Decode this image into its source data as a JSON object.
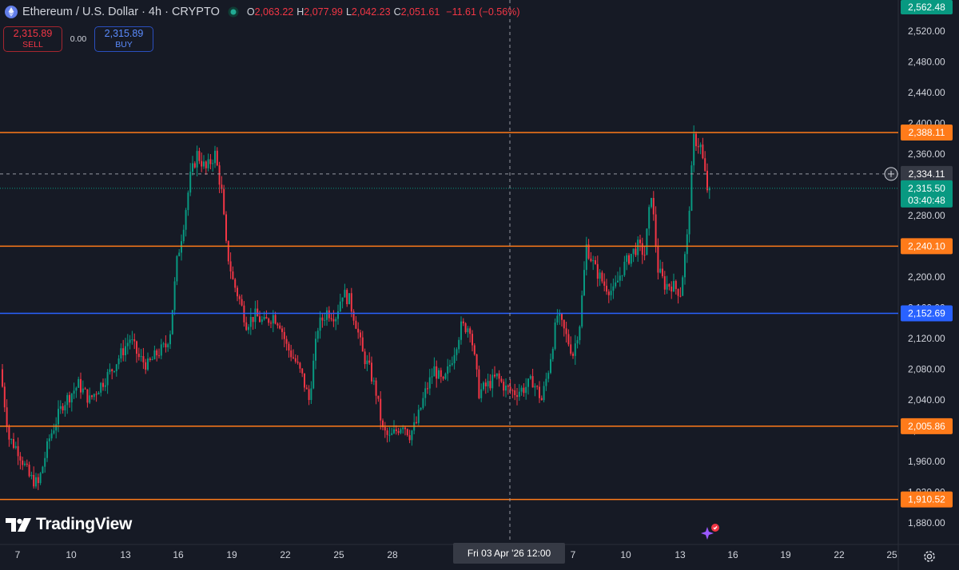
{
  "header": {
    "title": "Ethereum / U.S. Dollar · 4h · CRYPTO",
    "open_label": "O",
    "open": "2,063.22",
    "high_label": "H",
    "high": "2,077.99",
    "low_label": "L",
    "low": "2,042.23",
    "close_label": "C",
    "close": "2,051.61",
    "change": "−11.61 (−0.56%)"
  },
  "trade": {
    "sell_price": "2,315.89",
    "sell_label": "SELL",
    "spread": "0.00",
    "buy_price": "2,315.89",
    "buy_label": "BUY"
  },
  "brand": {
    "name": "TradingView"
  },
  "colors": {
    "background": "#161a25",
    "up": "#089981",
    "down": "#f23645",
    "level_line": "#ff7b1a",
    "blue_line": "#2962ff",
    "last_price": "#089981"
  },
  "chart_data": {
    "type": "candlestick",
    "ylim": [
      1860,
      2580
    ],
    "y_ticks": [
      "2,520.00",
      "2,480.00",
      "2,440.00",
      "2,400.00",
      "2,360.00",
      "2,320.00",
      "2,280.00",
      "2,240.00",
      "2,200.00",
      "2,160.00",
      "2,120.00",
      "2,080.00",
      "2,040.00",
      "2,000.00",
      "1,960.00",
      "1,920.00",
      "1,880.00"
    ],
    "x_ticks": [
      "7",
      "10",
      "13",
      "16",
      "19",
      "22",
      "25",
      "28",
      "7",
      "10",
      "13",
      "16",
      "19",
      "22",
      "25"
    ],
    "crosshair_x_label": "Fri 03 Apr '26   12:00",
    "crosshair_y_label": "2,334.11",
    "horizontal_levels": [
      {
        "value": 2388.11,
        "label": "2,388.11",
        "color": "#ff7b1a"
      },
      {
        "value": 2240.1,
        "label": "2,240.10",
        "color": "#ff7b1a"
      },
      {
        "value": 2152.69,
        "label": "2,152.69",
        "color": "#2962ff"
      },
      {
        "value": 2005.86,
        "label": "2,005.86",
        "color": "#ff7b1a"
      },
      {
        "value": 1910.52,
        "label": "1,910.52",
        "color": "#ff7b1a"
      }
    ],
    "top_badge": "2,562.48",
    "last_price": {
      "value": 2315.5,
      "label": "2,315.50",
      "countdown": "03:40:48"
    },
    "keypoints": [
      [
        0,
        2080
      ],
      [
        4,
        1990
      ],
      [
        8,
        1975
      ],
      [
        13,
        1940
      ],
      [
        17,
        1930
      ],
      [
        22,
        1990
      ],
      [
        28,
        2035
      ],
      [
        35,
        2060
      ],
      [
        40,
        2040
      ],
      [
        45,
        2060
      ],
      [
        50,
        2080
      ],
      [
        54,
        2100
      ],
      [
        58,
        2120
      ],
      [
        62,
        2095
      ],
      [
        66,
        2085
      ],
      [
        70,
        2100
      ],
      [
        74,
        2110
      ],
      [
        76,
        2130
      ],
      [
        79,
        2220
      ],
      [
        82,
        2270
      ],
      [
        85,
        2330
      ],
      [
        88,
        2360
      ],
      [
        92,
        2340
      ],
      [
        96,
        2360
      ],
      [
        99,
        2310
      ],
      [
        101,
        2240
      ],
      [
        104,
        2195
      ],
      [
        107,
        2170
      ],
      [
        110,
        2140
      ],
      [
        114,
        2150
      ],
      [
        118,
        2140
      ],
      [
        122,
        2150
      ],
      [
        125,
        2140
      ],
      [
        128,
        2110
      ],
      [
        132,
        2090
      ],
      [
        135,
        2070
      ],
      [
        138,
        2040
      ],
      [
        142,
        2135
      ],
      [
        146,
        2155
      ],
      [
        150,
        2150
      ],
      [
        153,
        2180
      ],
      [
        156,
        2170
      ],
      [
        159,
        2140
      ],
      [
        162,
        2100
      ],
      [
        165,
        2080
      ],
      [
        168,
        2050
      ],
      [
        171,
        2000
      ],
      [
        174,
        1990
      ],
      [
        177,
        2000
      ],
      [
        180,
        2010
      ],
      [
        183,
        1995
      ],
      [
        186,
        2010
      ],
      [
        190,
        2050
      ],
      [
        194,
        2080
      ],
      [
        198,
        2060
      ],
      [
        202,
        2095
      ],
      [
        206,
        2135
      ],
      [
        210,
        2135
      ],
      [
        214,
        2050
      ],
      [
        218,
        2060
      ],
      [
        222,
        2070
      ],
      [
        226,
        2055
      ],
      [
        230,
        2050
      ],
      [
        234,
        2055
      ],
      [
        238,
        2065
      ],
      [
        242,
        2040
      ],
      [
        245,
        2080
      ],
      [
        249,
        2150
      ],
      [
        252,
        2130
      ],
      [
        256,
        2100
      ],
      [
        259,
        2140
      ],
      [
        262,
        2240
      ],
      [
        266,
        2210
      ],
      [
        270,
        2190
      ],
      [
        274,
        2180
      ],
      [
        278,
        2210
      ],
      [
        282,
        2230
      ],
      [
        285,
        2240
      ],
      [
        288,
        2230
      ],
      [
        291,
        2310
      ],
      [
        294,
        2210
      ],
      [
        297,
        2190
      ],
      [
        300,
        2190
      ],
      [
        304,
        2180
      ],
      [
        307,
        2250
      ],
      [
        310,
        2380
      ],
      [
        313,
        2370
      ],
      [
        316,
        2315
      ]
    ]
  }
}
